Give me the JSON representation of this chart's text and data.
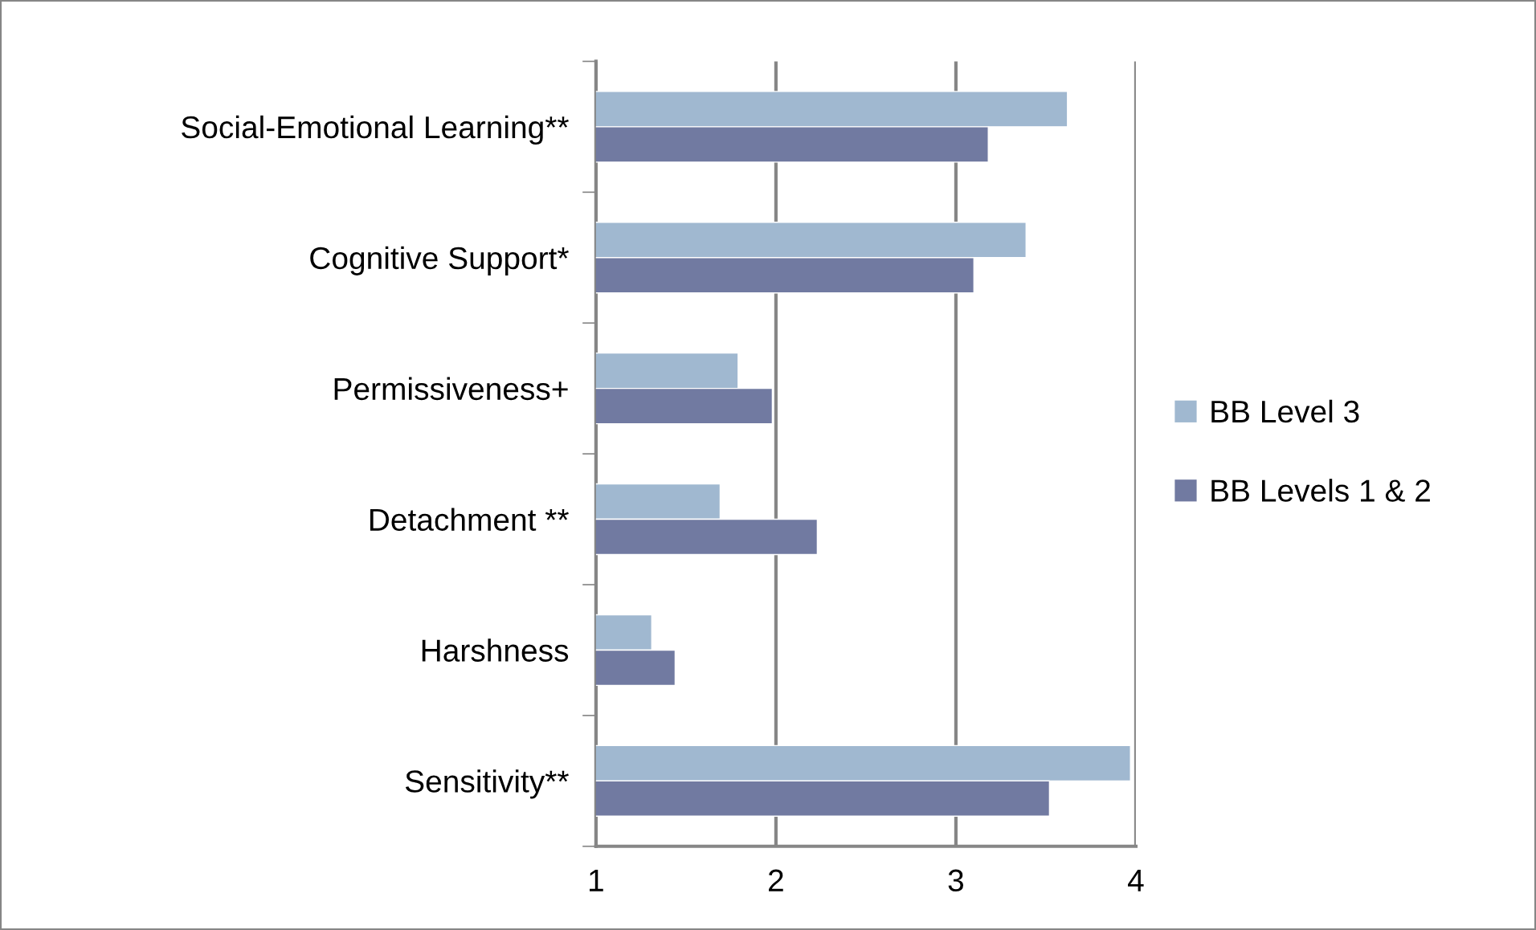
{
  "chart_data": {
    "type": "bar",
    "orientation": "horizontal",
    "categories": [
      "Social-Emotional Learning**",
      "Cognitive Support*",
      "Permissiveness+",
      "Detachment **",
      "Harshness",
      "Sensitivity**"
    ],
    "series": [
      {
        "name": "BB Level 3",
        "color": "#a0b8d0",
        "values": [
          3.62,
          3.39,
          1.79,
          1.69,
          1.31,
          3.97
        ]
      },
      {
        "name": "BB Levels 1 & 2",
        "color": "#717aa1",
        "values": [
          3.18,
          3.1,
          1.98,
          2.23,
          1.44,
          3.52
        ]
      }
    ],
    "xlim": [
      1,
      4
    ],
    "xticks": [
      1,
      2,
      3,
      4
    ],
    "grid": "x",
    "legend": "right"
  }
}
